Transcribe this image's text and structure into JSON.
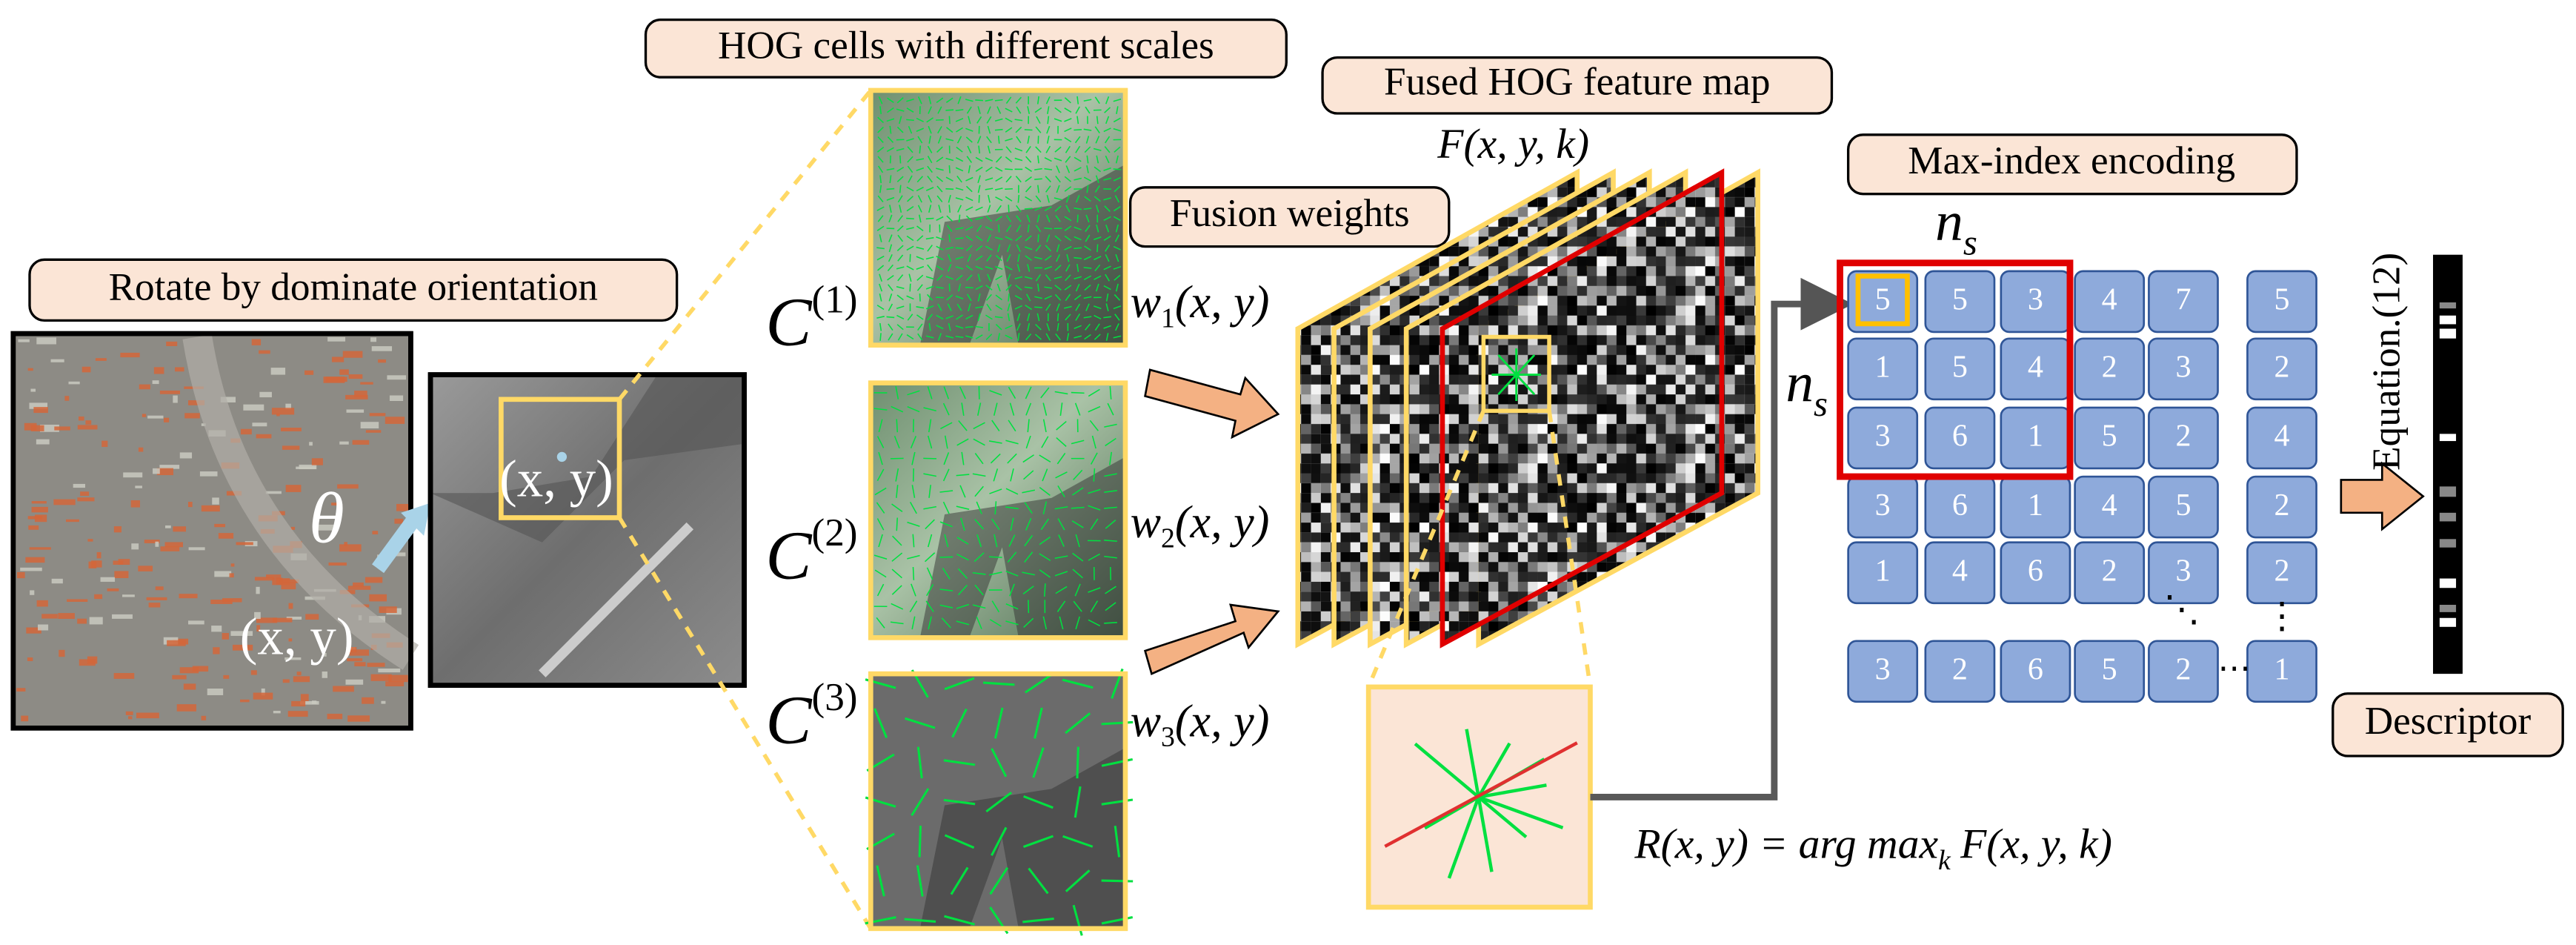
{
  "labels": {
    "rotate": "Rotate by dominate orientation",
    "hog_cells": "HOG cells with different scales",
    "fused_map": "Fused HOG feature map",
    "fusion_weights": "Fusion weights",
    "max_index": "Max-index encoding",
    "descriptor": "Descriptor",
    "equation": "Equation.(12)"
  },
  "math": {
    "theta": "θ",
    "xy_left": "(x, y)",
    "xy_patch": "(x, y)",
    "feature": "F(x, y, k)",
    "ns_top": {
      "base": "n",
      "sub": "s"
    },
    "ns_left": {
      "base": "n",
      "sub": "s"
    },
    "scales": [
      {
        "base": "C",
        "sup": "(1)"
      },
      {
        "base": "C",
        "sup": "(2)"
      },
      {
        "base": "C",
        "sup": "(3)"
      }
    ],
    "weights": [
      {
        "base": "w",
        "sub": "1",
        "arg": "(x, y)"
      },
      {
        "base": "w",
        "sub": "2",
        "arg": "(x, y)"
      },
      {
        "base": "w",
        "sub": "3",
        "arg": "(x, y)"
      }
    ],
    "argmax": {
      "lhs": "R(x, y) = arg max",
      "sub": "k",
      "rhs": "F(x, y, k)"
    }
  },
  "grid": {
    "rows": [
      [
        5,
        5,
        3,
        4,
        7,
        5
      ],
      [
        1,
        5,
        4,
        2,
        3,
        2
      ],
      [
        3,
        6,
        1,
        5,
        2,
        4
      ],
      [
        3,
        6,
        1,
        4,
        5,
        2
      ],
      [
        1,
        4,
        6,
        2,
        3,
        2
      ]
    ],
    "last_row": [
      3,
      2,
      6,
      5,
      2,
      1
    ],
    "ellipsis": {
      "h": "⋯",
      "v": "⋮",
      "d": "⋱",
      "h_last": "⋯"
    }
  }
}
